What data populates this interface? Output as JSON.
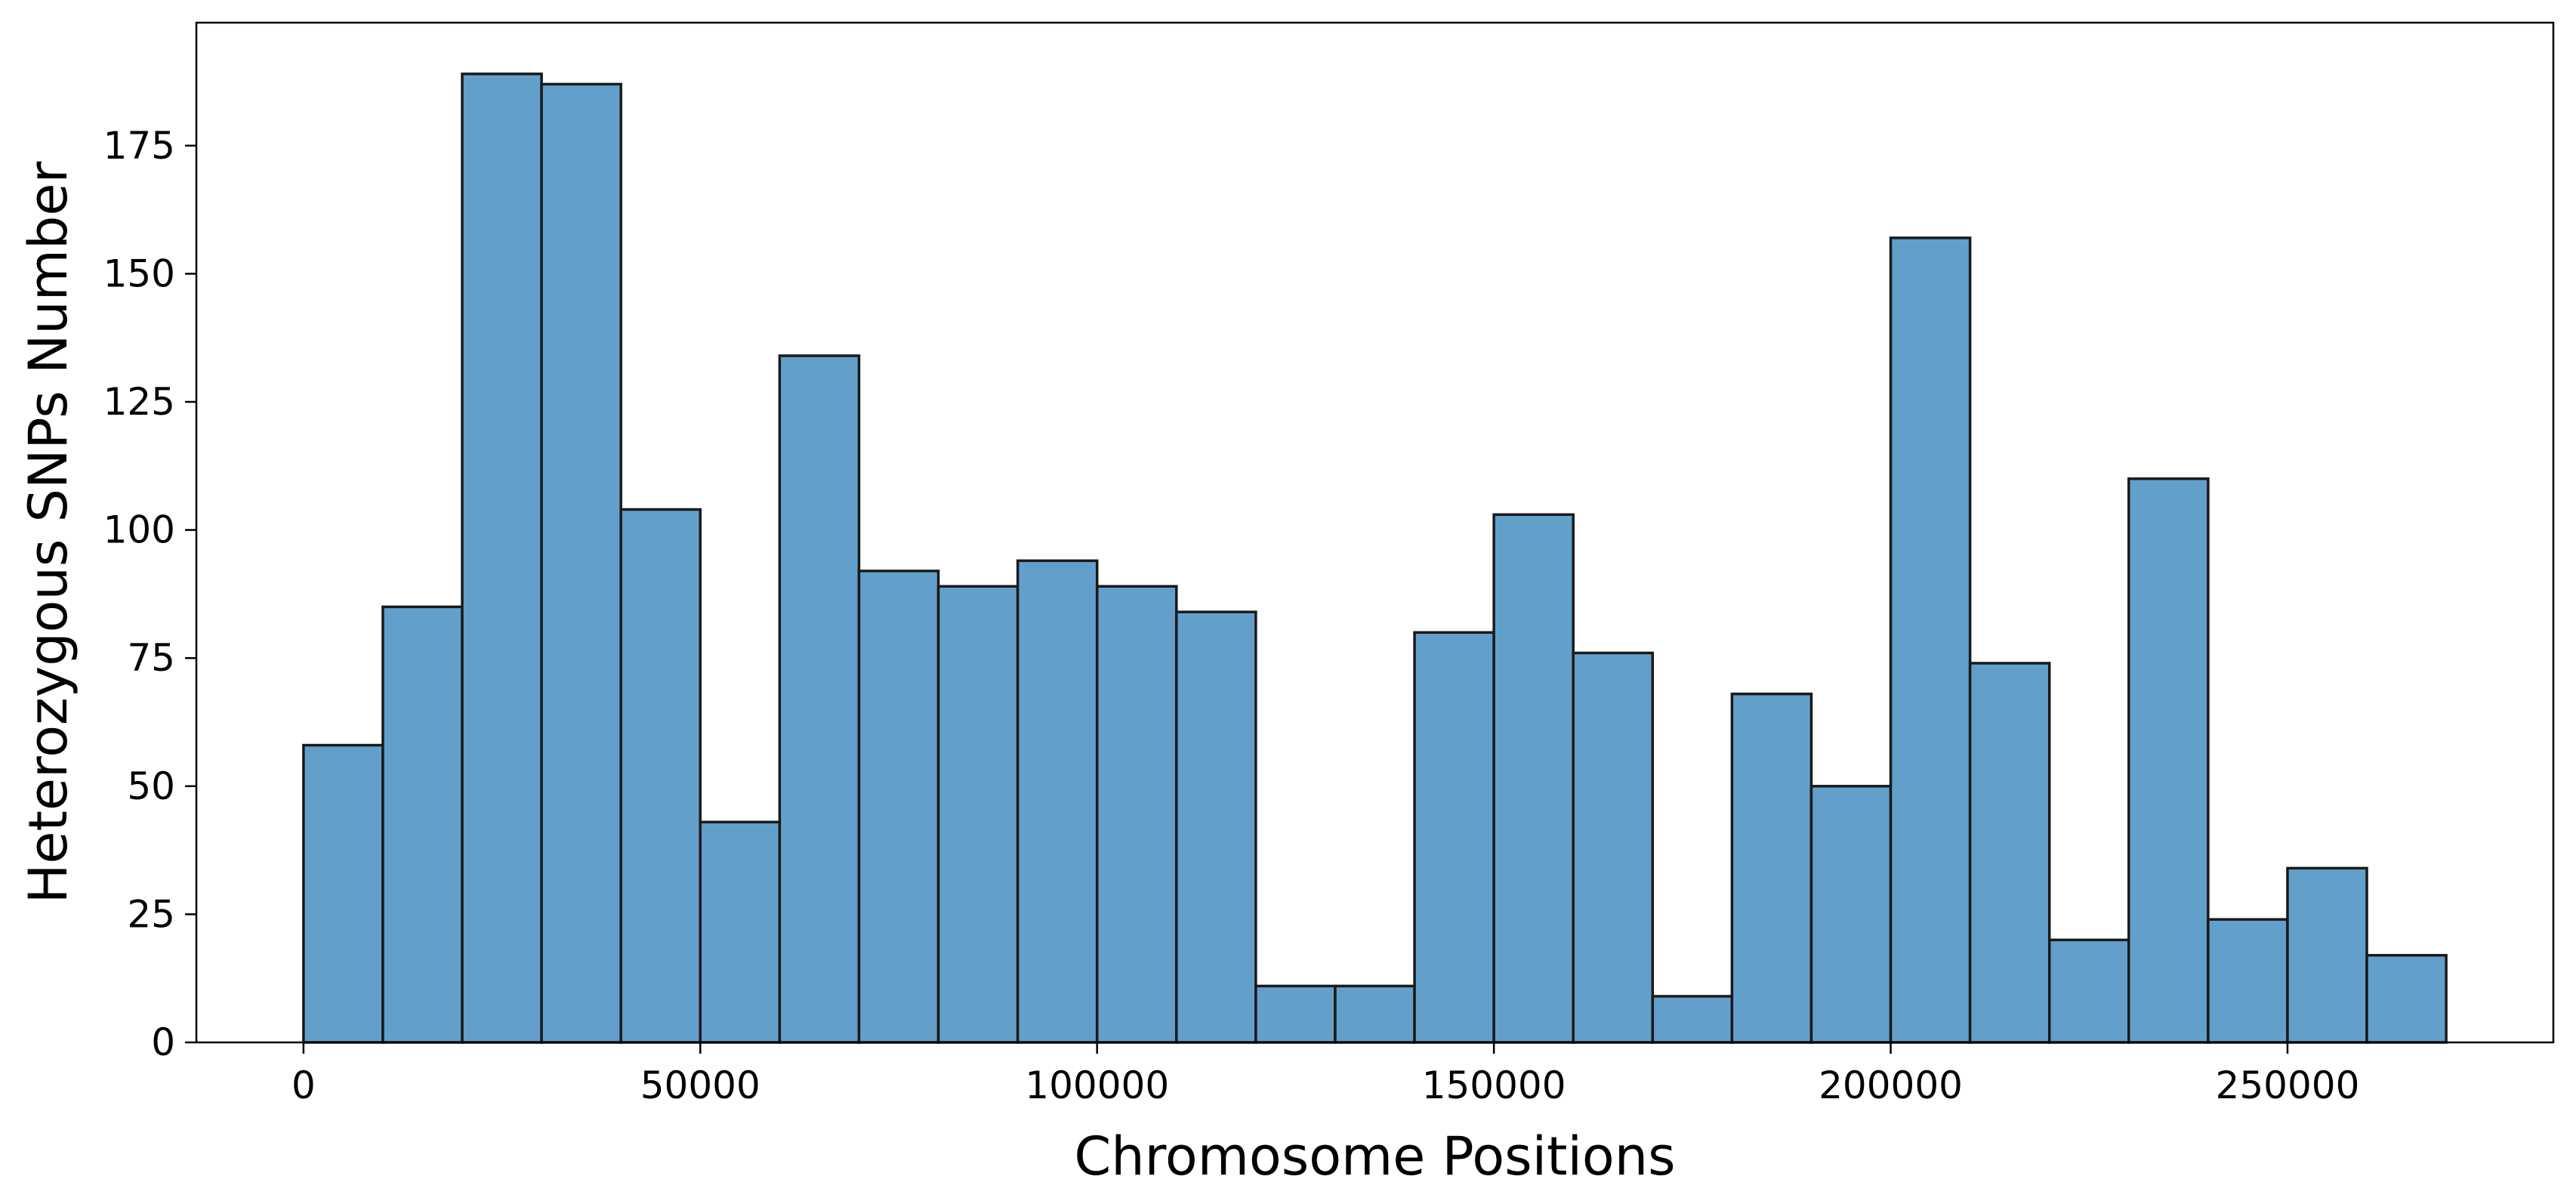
{
  "chart_data": {
    "type": "bar",
    "title": "",
    "xlabel": "Chromosome Positions",
    "ylabel": "Heterozygous SNPs Number",
    "bar_color": "#62a0cb",
    "edge_color": "#1a1a1a",
    "bin_width": 10000,
    "bins_start": [
      0,
      10000,
      20000,
      30000,
      40000,
      50000,
      60000,
      70000,
      80000,
      90000,
      100000,
      110000,
      120000,
      130000,
      140000,
      150000,
      160000,
      170000,
      180000,
      190000,
      200000,
      210000,
      220000,
      230000,
      240000,
      250000,
      260000
    ],
    "values": [
      58,
      85,
      189,
      187,
      104,
      43,
      134,
      92,
      89,
      94,
      89,
      84,
      11,
      11,
      80,
      103,
      76,
      9,
      68,
      50,
      157,
      74,
      20,
      110,
      24,
      34,
      17
    ],
    "xlim": [
      -13500,
      283500
    ],
    "ylim": [
      0,
      199
    ],
    "x_ticks": [
      0,
      50000,
      100000,
      150000,
      200000,
      250000
    ],
    "x_tick_labels": [
      "0",
      "50000",
      "100000",
      "150000",
      "200000",
      "250000"
    ],
    "y_ticks": [
      0,
      25,
      50,
      75,
      100,
      125,
      150,
      175
    ],
    "y_tick_labels": [
      "0",
      "25",
      "50",
      "75",
      "100",
      "125",
      "150",
      "175"
    ],
    "grid": false,
    "legend": "none"
  }
}
